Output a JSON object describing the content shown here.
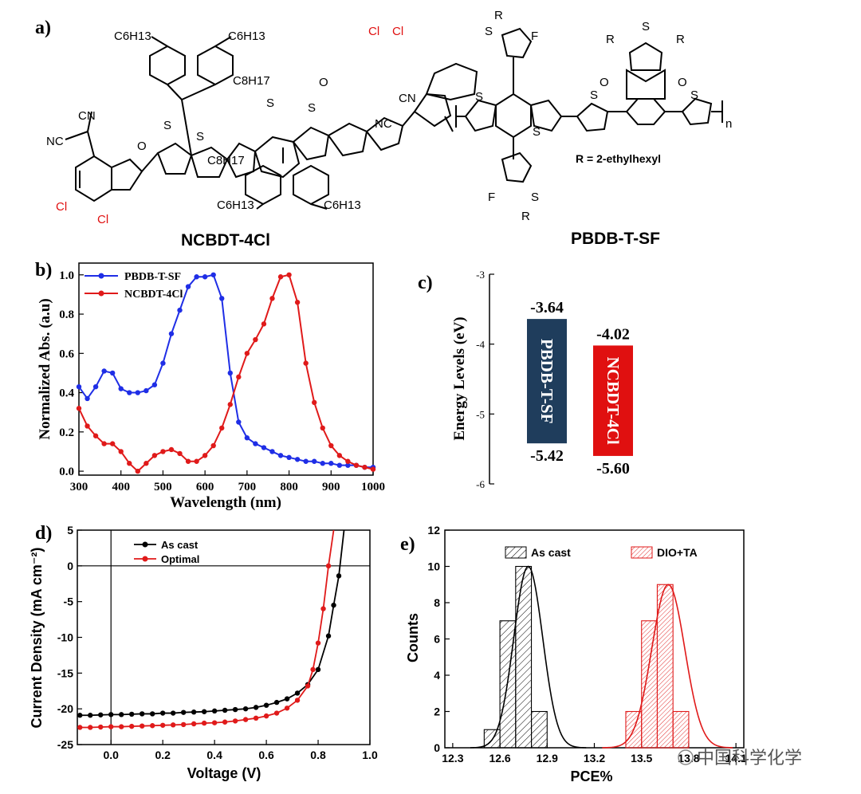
{
  "panel_labels": {
    "a": "a)",
    "b": "b)",
    "c": "c)",
    "d": "d)",
    "e": "e)"
  },
  "structures": {
    "left_name": "NCBDT-4Cl",
    "right_name": "PBDB-T-SF",
    "r_def": "R = 2-ethylhexyl",
    "left_labels": {
      "c6h13": "C6H13",
      "c8h17": "C8H17",
      "cl": "Cl",
      "cn": "CN",
      "nc": "NC",
      "s": "S",
      "o": "O"
    },
    "right_labels": {
      "r": "R",
      "s": "S",
      "f": "F",
      "o": "O",
      "n": "n"
    }
  },
  "watermark": "中国科学化学",
  "chart_data": [
    {
      "id": "b",
      "type": "line",
      "xlabel": "Wavelength (nm)",
      "ylabel": "Normalized Abs. (a.u)",
      "xlim": [
        300,
        1000
      ],
      "ylim": [
        -0.02,
        1.06
      ],
      "xticks": [
        300,
        400,
        500,
        600,
        700,
        800,
        900,
        1000
      ],
      "yticks": [
        0.0,
        0.2,
        0.4,
        0.6,
        0.8,
        1.0
      ],
      "yticklabels": [
        "0.0",
        "0.2",
        "0.4",
        "0.6",
        "0.8",
        "1.0"
      ],
      "legend": "top-left",
      "series": [
        {
          "name": "PBDB-T-SF",
          "color": "#1f2ee6",
          "x": [
            300,
            320,
            340,
            360,
            380,
            400,
            420,
            440,
            460,
            480,
            500,
            520,
            540,
            560,
            580,
            600,
            620,
            640,
            660,
            680,
            700,
            720,
            740,
            760,
            780,
            800,
            820,
            840,
            860,
            880,
            900,
            920,
            940,
            960,
            980,
            1000
          ],
          "y": [
            0.43,
            0.37,
            0.43,
            0.51,
            0.5,
            0.42,
            0.4,
            0.4,
            0.41,
            0.44,
            0.55,
            0.7,
            0.82,
            0.94,
            0.99,
            0.99,
            1.0,
            0.88,
            0.5,
            0.25,
            0.17,
            0.14,
            0.12,
            0.1,
            0.08,
            0.07,
            0.06,
            0.05,
            0.05,
            0.04,
            0.04,
            0.03,
            0.03,
            0.03,
            0.02,
            0.02
          ]
        },
        {
          "name": "NCBDT-4Cl",
          "color": "#e01a1a",
          "x": [
            300,
            320,
            340,
            360,
            380,
            400,
            420,
            440,
            460,
            480,
            500,
            520,
            540,
            560,
            580,
            600,
            620,
            640,
            660,
            680,
            700,
            720,
            740,
            760,
            780,
            800,
            820,
            840,
            860,
            880,
            900,
            920,
            940,
            960,
            980,
            1000
          ],
          "y": [
            0.32,
            0.23,
            0.18,
            0.14,
            0.14,
            0.1,
            0.04,
            0.0,
            0.04,
            0.08,
            0.1,
            0.11,
            0.09,
            0.05,
            0.05,
            0.08,
            0.13,
            0.22,
            0.34,
            0.48,
            0.6,
            0.67,
            0.75,
            0.88,
            0.99,
            1.0,
            0.86,
            0.55,
            0.35,
            0.22,
            0.13,
            0.08,
            0.05,
            0.03,
            0.02,
            0.01
          ]
        }
      ]
    },
    {
      "id": "c",
      "type": "bar",
      "ylabel": "Energy Levels (eV)",
      "ylim": [
        -6,
        -3
      ],
      "yticks": [
        -3,
        -4,
        -5,
        -6
      ],
      "yticklabels": [
        "-3",
        "-4",
        "-5",
        "-6"
      ],
      "bars": [
        {
          "name": "PBDB-T-SF",
          "lumo": -3.64,
          "homo": -5.42,
          "lumo_label": "-3.64",
          "homo_label": "-5.42",
          "color": "#1f3d5c",
          "position": 0
        },
        {
          "name": "NCBDT-4Cl",
          "lumo": -4.02,
          "homo": -5.6,
          "lumo_label": "-4.02",
          "homo_label": "-5.60",
          "color": "#e01010",
          "position": 1
        }
      ]
    },
    {
      "id": "d",
      "type": "line",
      "xlabel": "Voltage (V)",
      "ylabel": "Current Density (mA cm⁻²)",
      "xlim": [
        -0.13,
        1.0
      ],
      "ylim": [
        -25,
        5
      ],
      "xticks": [
        0.0,
        0.2,
        0.4,
        0.6,
        0.8,
        1.0
      ],
      "xticklabels": [
        "0.0",
        "0.2",
        "0.4",
        "0.6",
        "0.8",
        "1.0"
      ],
      "yticks": [
        5,
        0,
        -5,
        -10,
        -15,
        -20,
        -25
      ],
      "legend": "top-left",
      "series": [
        {
          "name": "As cast",
          "color": "#000000",
          "x": [
            -0.12,
            -0.08,
            -0.04,
            0.0,
            0.04,
            0.08,
            0.12,
            0.16,
            0.2,
            0.24,
            0.28,
            0.32,
            0.36,
            0.4,
            0.44,
            0.48,
            0.52,
            0.56,
            0.6,
            0.64,
            0.68,
            0.72,
            0.76,
            0.8,
            0.84,
            0.86,
            0.88,
            0.9
          ],
          "y": [
            -20.9,
            -20.9,
            -20.85,
            -20.8,
            -20.8,
            -20.75,
            -20.7,
            -20.7,
            -20.6,
            -20.6,
            -20.5,
            -20.45,
            -20.4,
            -20.3,
            -20.2,
            -20.1,
            -20.0,
            -19.8,
            -19.5,
            -19.1,
            -18.6,
            -17.8,
            -16.6,
            -14.5,
            -9.8,
            -5.5,
            -1.4,
            5.0
          ]
        },
        {
          "name": "Optimal",
          "color": "#e01a1a",
          "x": [
            -0.12,
            -0.08,
            -0.04,
            0.0,
            0.04,
            0.08,
            0.12,
            0.16,
            0.2,
            0.24,
            0.28,
            0.32,
            0.36,
            0.4,
            0.44,
            0.48,
            0.52,
            0.56,
            0.6,
            0.64,
            0.68,
            0.72,
            0.76,
            0.78,
            0.8,
            0.82,
            0.84,
            0.86
          ],
          "y": [
            -22.6,
            -22.6,
            -22.55,
            -22.5,
            -22.5,
            -22.45,
            -22.4,
            -22.35,
            -22.3,
            -22.25,
            -22.2,
            -22.1,
            -22.0,
            -21.95,
            -21.85,
            -21.7,
            -21.5,
            -21.3,
            -21.0,
            -20.6,
            -19.9,
            -18.8,
            -16.8,
            -14.5,
            -10.8,
            -6.0,
            0.0,
            5.0
          ]
        }
      ]
    },
    {
      "id": "e",
      "type": "bar",
      "xlabel": "PCE%",
      "ylabel": "Counts",
      "xlim": [
        12.25,
        14.15
      ],
      "ylim": [
        0,
        12
      ],
      "xticks": [
        12.3,
        12.6,
        12.9,
        13.2,
        13.5,
        13.8,
        14.1
      ],
      "xticklabels": [
        "12.3",
        "12.6",
        "12.9",
        "13.2",
        "13.5",
        "13.8",
        "14.1"
      ],
      "yticks": [
        0,
        2,
        4,
        6,
        8,
        10,
        12
      ],
      "legend": "top",
      "series": [
        {
          "name": "As cast",
          "color": "#000000",
          "bin_width": 0.1,
          "bin_centers": [
            12.55,
            12.65,
            12.75,
            12.85,
            12.95,
            13.05
          ],
          "counts": [
            1,
            7,
            10,
            2,
            0,
            0
          ],
          "fit": {
            "mean": 12.78,
            "sigma": 0.092,
            "peak": 10.0
          }
        },
        {
          "name": "DIO+TA",
          "color": "#e01a1a",
          "bin_width": 0.1,
          "bin_centers": [
            13.45,
            13.55,
            13.65,
            13.75
          ],
          "counts": [
            2,
            7,
            9,
            2
          ],
          "fit": {
            "mean": 13.67,
            "sigma": 0.105,
            "peak": 9.0
          }
        }
      ]
    }
  ]
}
